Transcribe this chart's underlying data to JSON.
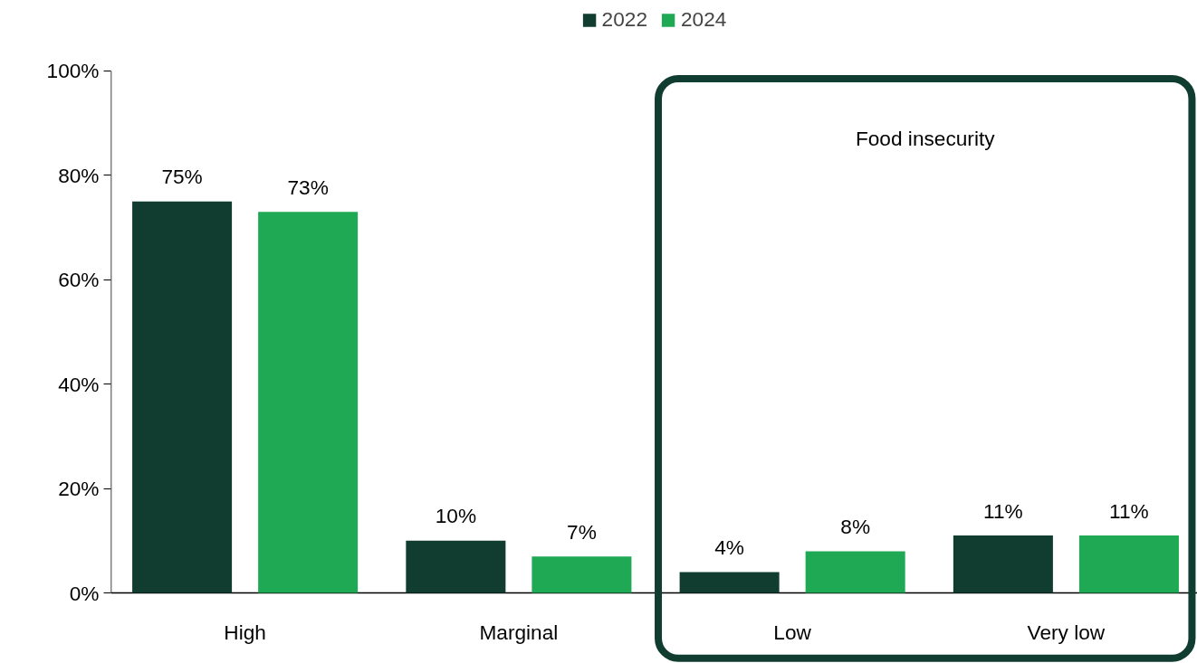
{
  "chart_data": {
    "type": "bar",
    "categories": [
      "High",
      "Marginal",
      "Low",
      "Very low"
    ],
    "series": [
      {
        "name": "2022",
        "color": "#113c30",
        "values": [
          75,
          10,
          4,
          11
        ],
        "value_labels": [
          "75%",
          "10%",
          "4%",
          "11%"
        ]
      },
      {
        "name": "2024",
        "color": "#20a954",
        "values": [
          73,
          7,
          8,
          11
        ],
        "value_labels": [
          "73%",
          "7%",
          "8%",
          "11%"
        ]
      }
    ],
    "ylim": [
      0,
      100
    ],
    "yticks": [
      {
        "value": 0,
        "label": "0%"
      },
      {
        "value": 20,
        "label": "20%"
      },
      {
        "value": 40,
        "label": "40%"
      },
      {
        "value": 60,
        "label": "60%"
      },
      {
        "value": 80,
        "label": "80%"
      },
      {
        "value": 100,
        "label": "100%"
      }
    ],
    "grid": false,
    "legend": "top",
    "annotations": [
      "Food insecurity"
    ]
  }
}
